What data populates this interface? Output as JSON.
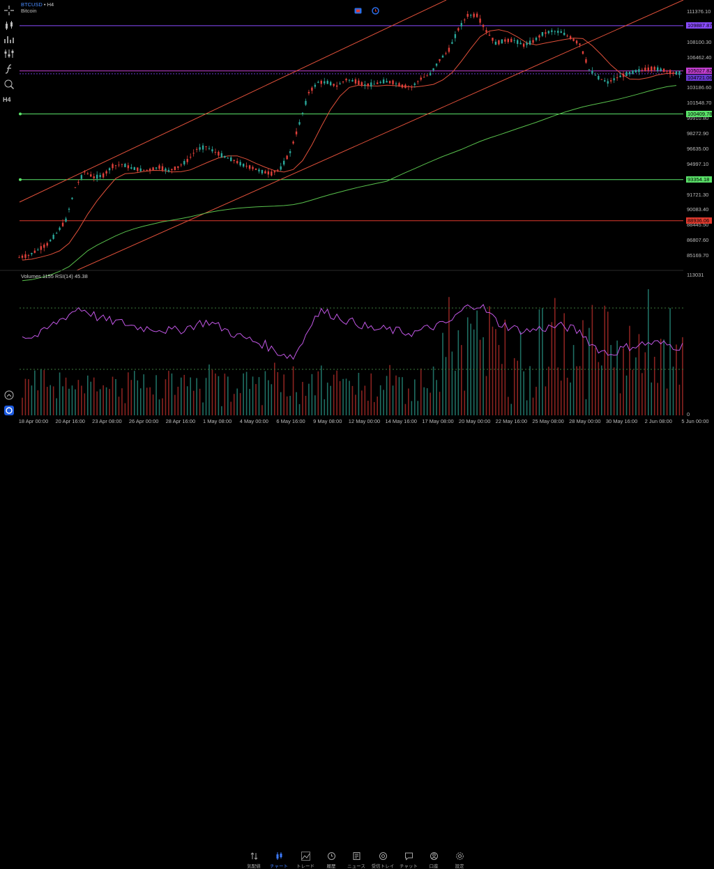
{
  "header": {
    "symbol": "BTCUSD",
    "sep": " • ",
    "timeframe": "H4",
    "instrument_name": "Bitcoin"
  },
  "indicator_label": "Volumes 1155 RSI(14) 45.38",
  "price_axis": {
    "ticks": [
      "111376.10",
      "108100.30",
      "106462.40",
      "103186.60",
      "101548.70",
      "99910.80",
      "98272.90",
      "96635.00",
      "94997.10",
      "91721.30",
      "90083.40",
      "88445.50",
      "86807.60",
      "85169.70"
    ],
    "tags": [
      {
        "label": "109887.87",
        "color": "#8a4cff",
        "text": "#000000"
      },
      {
        "label": "105027.82",
        "color": "#c33fd1",
        "text": "#000000"
      },
      {
        "label": "104721.06",
        "color": "#6a3ad1",
        "text": "#000000"
      },
      {
        "label": "100409.78",
        "color": "#5be36a",
        "text": "#000000"
      },
      {
        "label": "93354.18",
        "color": "#5be36a",
        "text": "#000000"
      },
      {
        "label": "88936.06",
        "color": "#e23a2e",
        "text": "#000000"
      }
    ],
    "volume_ticks": [
      "113031",
      "0"
    ]
  },
  "date_axis": [
    "18 Apr 00:00",
    "20 Apr 16:00",
    "23 Apr 08:00",
    "26 Apr 00:00",
    "28 Apr 16:00",
    "1 May 08:00",
    "4 May 00:00",
    "6 May 16:00",
    "9 May 08:00",
    "12 May 00:00",
    "14 May 16:00",
    "17 May 08:00",
    "20 May 00:00",
    "22 May 16:00",
    "25 May 08:00",
    "28 May 00:00",
    "30 May 16:00",
    "2 Jun 08:00",
    "5 Jun 00:00"
  ],
  "colors": {
    "bull": "#2aa79a",
    "bear": "#e0403a",
    "rsi": "#c257e6",
    "ma_fast": "#e0503a",
    "ma_slow": "#59c24d",
    "channel": "#e0503a",
    "accent": "#3d7bff"
  },
  "tabs": [
    {
      "label": "気配値",
      "icon": "quotes-icon"
    },
    {
      "label": "チャート",
      "icon": "chart-icon",
      "active": true
    },
    {
      "label": "トレード",
      "icon": "trade-icon"
    },
    {
      "label": "履歴",
      "icon": "history-icon"
    },
    {
      "label": "ニュース",
      "icon": "news-icon"
    },
    {
      "label": "受信トレイ",
      "icon": "inbox-icon"
    },
    {
      "label": "チャット",
      "icon": "chat-icon"
    },
    {
      "label": "口座",
      "icon": "account-icon"
    },
    {
      "label": "設定",
      "icon": "settings-icon"
    }
  ],
  "toolbar_icons": [
    "crosshair-icon",
    "candlestick-type-icon",
    "indicators-icon",
    "objects-icon",
    "function-icon",
    "template-icon",
    "timeframe-icon"
  ],
  "timeframe_button": "H4",
  "chart_data": {
    "type": "candlestick",
    "series": [
      {
        "name": "price",
        "values": [
          85000,
          85200,
          85800,
          86400,
          87600,
          89000,
          92500,
          94200,
          93600,
          93800,
          94800,
          95000,
          94600,
          94400,
          94400,
          94700,
          94300,
          94700,
          95400,
          96600,
          96900,
          96300,
          95800,
          95400,
          94900,
          94600,
          94200,
          94000,
          94600,
          96300,
          99400,
          102700,
          103800,
          103800,
          103400,
          104100,
          103900,
          103500,
          103600,
          103900,
          103800,
          103400,
          103300,
          104200,
          104700,
          106200,
          107300,
          109500,
          111000,
          111000,
          109300,
          108000,
          108300,
          108300,
          107800,
          108200,
          109000,
          109300,
          109200,
          108600,
          107900,
          105200,
          104300,
          103800,
          104300,
          104700,
          105000,
          105200,
          105300,
          105100,
          104800
        ]
      },
      {
        "name": "RSI(14)",
        "values": [
          52,
          51,
          53,
          58,
          62,
          66,
          70,
          68,
          64,
          62,
          61,
          60,
          58,
          57,
          57,
          56,
          55,
          56,
          58,
          60,
          61,
          58,
          55,
          52,
          50,
          48,
          46,
          42,
          40,
          38,
          48,
          62,
          68,
          66,
          64,
          61,
          60,
          57,
          56,
          56,
          55,
          54,
          54,
          56,
          58,
          59,
          62,
          68,
          72,
          72,
          66,
          60,
          58,
          56,
          55,
          56,
          57,
          58,
          58,
          56,
          53,
          46,
          42,
          40,
          43,
          45,
          46,
          47,
          47,
          46,
          45
        ]
      }
    ],
    "horizontal_levels": [
      109887.87,
      105027.82,
      104721.06,
      100409.78,
      93354.18,
      88936.06
    ]
  }
}
